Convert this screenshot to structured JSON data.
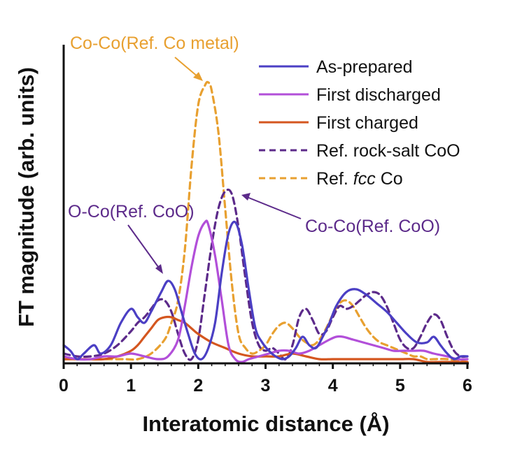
{
  "chart_data": {
    "type": "line",
    "xlabel": "Interatomic distance (Å)",
    "ylabel": "FT magnitude (arb. units)",
    "xlim": [
      0,
      6
    ],
    "ylim": [
      0,
      1
    ],
    "xticks": [
      "0",
      "1",
      "2",
      "3",
      "4",
      "5",
      "6"
    ],
    "legend_position": "top-right",
    "series": [
      {
        "name": "As-prepared",
        "color": "#4B3FC4",
        "dash": "solid",
        "x": [
          0,
          0.1,
          0.2,
          0.3,
          0.45,
          0.55,
          0.7,
          0.85,
          1.0,
          1.1,
          1.2,
          1.3,
          1.45,
          1.55,
          1.65,
          1.75,
          1.85,
          1.95,
          2.05,
          2.15,
          2.25,
          2.35,
          2.45,
          2.55,
          2.65,
          2.75,
          2.85,
          2.95,
          3.05,
          3.15,
          3.25,
          3.35,
          3.45,
          3.55,
          3.65,
          3.75,
          3.85,
          3.95,
          4.05,
          4.2,
          4.35,
          4.5,
          4.65,
          4.8,
          4.95,
          5.1,
          5.25,
          5.4,
          5.5,
          5.6,
          5.7,
          5.8,
          5.9,
          6.0
        ],
        "y": [
          0.06,
          0.04,
          0.01,
          0.03,
          0.06,
          0.03,
          0.06,
          0.14,
          0.19,
          0.16,
          0.14,
          0.18,
          0.25,
          0.29,
          0.26,
          0.18,
          0.1,
          0.03,
          0.01,
          0.05,
          0.14,
          0.32,
          0.46,
          0.5,
          0.42,
          0.26,
          0.12,
          0.07,
          0.04,
          0.02,
          0.01,
          0.02,
          0.05,
          0.09,
          0.06,
          0.05,
          0.09,
          0.14,
          0.2,
          0.25,
          0.26,
          0.24,
          0.21,
          0.18,
          0.14,
          0.1,
          0.07,
          0.07,
          0.09,
          0.06,
          0.03,
          0.01,
          0.02,
          0.02
        ]
      },
      {
        "name": "First discharged",
        "color": "#B24FD9",
        "dash": "solid",
        "x": [
          0,
          0.2,
          0.4,
          0.6,
          0.8,
          1.0,
          1.2,
          1.4,
          1.55,
          1.7,
          1.8,
          1.9,
          2.0,
          2.1,
          2.15,
          2.25,
          2.35,
          2.45,
          2.55,
          2.65,
          2.75,
          2.9,
          3.05,
          3.2,
          3.35,
          3.5,
          3.65,
          3.8,
          3.95,
          4.05,
          4.15,
          4.3,
          4.45,
          4.6,
          4.75,
          4.9,
          5.05,
          5.2,
          5.35,
          5.5,
          5.7,
          5.85,
          6.0
        ],
        "y": [
          0.02,
          0.01,
          0.01,
          0.02,
          0.02,
          0.03,
          0.02,
          0.01,
          0.02,
          0.08,
          0.2,
          0.34,
          0.45,
          0.5,
          0.49,
          0.38,
          0.22,
          0.06,
          0.01,
          0.0,
          0.01,
          0.02,
          0.03,
          0.04,
          0.04,
          0.03,
          0.04,
          0.06,
          0.08,
          0.09,
          0.09,
          0.08,
          0.07,
          0.06,
          0.05,
          0.04,
          0.04,
          0.04,
          0.04,
          0.03,
          0.02,
          0.01,
          0.01
        ]
      },
      {
        "name": "First charged",
        "color": "#D4561F",
        "dash": "solid",
        "x": [
          0,
          0.3,
          0.6,
          0.8,
          1.0,
          1.1,
          1.2,
          1.3,
          1.4,
          1.5,
          1.6,
          1.7,
          1.8,
          1.9,
          2.0,
          2.2,
          2.4,
          2.6,
          2.8,
          3.0,
          3.2,
          3.4,
          3.6,
          3.8,
          4.0,
          4.2,
          4.4,
          4.6,
          4.8,
          5.0,
          5.2,
          5.4,
          5.6,
          5.8,
          6.0
        ],
        "y": [
          0.01,
          0.01,
          0.01,
          0.02,
          0.04,
          0.06,
          0.09,
          0.12,
          0.15,
          0.16,
          0.16,
          0.15,
          0.14,
          0.12,
          0.1,
          0.07,
          0.05,
          0.03,
          0.02,
          0.02,
          0.02,
          0.03,
          0.02,
          0.01,
          0.01,
          0.01,
          0.01,
          0.01,
          0.01,
          0.01,
          0.01,
          0.0,
          0.0,
          0.0,
          0.0
        ]
      },
      {
        "name": "Ref. rock-salt CoO",
        "color": "#5C2A8A",
        "dash": "dashed",
        "x": [
          0,
          0.2,
          0.4,
          0.6,
          0.8,
          1.0,
          1.1,
          1.2,
          1.3,
          1.4,
          1.5,
          1.6,
          1.7,
          1.8,
          1.9,
          2.0,
          2.1,
          2.2,
          2.3,
          2.4,
          2.5,
          2.6,
          2.7,
          2.8,
          2.9,
          3.0,
          3.1,
          3.2,
          3.3,
          3.4,
          3.5,
          3.6,
          3.7,
          3.8,
          3.9,
          4.0,
          4.1,
          4.2,
          4.3,
          4.4,
          4.5,
          4.6,
          4.7,
          4.8,
          4.9,
          5.0,
          5.1,
          5.2,
          5.3,
          5.4,
          5.5,
          5.6,
          5.7,
          5.8,
          5.9,
          6.0
        ],
        "y": [
          0.03,
          0.02,
          0.02,
          0.03,
          0.06,
          0.11,
          0.14,
          0.16,
          0.19,
          0.22,
          0.22,
          0.18,
          0.1,
          0.03,
          0.01,
          0.08,
          0.25,
          0.42,
          0.55,
          0.61,
          0.6,
          0.48,
          0.3,
          0.14,
          0.06,
          0.04,
          0.05,
          0.03,
          0.01,
          0.06,
          0.16,
          0.19,
          0.15,
          0.1,
          0.11,
          0.16,
          0.2,
          0.19,
          0.2,
          0.22,
          0.24,
          0.25,
          0.24,
          0.2,
          0.14,
          0.08,
          0.05,
          0.05,
          0.09,
          0.14,
          0.17,
          0.15,
          0.09,
          0.04,
          0.02,
          0.02
        ]
      },
      {
        "name": "Ref. fcc Co",
        "color": "#E8A030",
        "dash": "dashed",
        "x": [
          0,
          0.3,
          0.6,
          0.9,
          1.1,
          1.3,
          1.5,
          1.6,
          1.7,
          1.8,
          1.9,
          2.0,
          2.1,
          2.15,
          2.2,
          2.3,
          2.4,
          2.5,
          2.6,
          2.7,
          2.8,
          2.9,
          3.0,
          3.1,
          3.2,
          3.3,
          3.4,
          3.5,
          3.6,
          3.7,
          3.8,
          3.9,
          4.0,
          4.1,
          4.2,
          4.3,
          4.4,
          4.5,
          4.6,
          4.7,
          4.8,
          4.9,
          5.0,
          5.1,
          5.2,
          5.3,
          5.4,
          5.5,
          5.7,
          6.0
        ],
        "y": [
          0.01,
          0.01,
          0.01,
          0.01,
          0.01,
          0.03,
          0.08,
          0.14,
          0.22,
          0.4,
          0.7,
          0.92,
          0.99,
          1.0,
          0.97,
          0.82,
          0.55,
          0.28,
          0.1,
          0.05,
          0.03,
          0.04,
          0.06,
          0.1,
          0.13,
          0.14,
          0.12,
          0.09,
          0.07,
          0.06,
          0.08,
          0.12,
          0.17,
          0.21,
          0.22,
          0.2,
          0.16,
          0.12,
          0.09,
          0.07,
          0.06,
          0.05,
          0.04,
          0.03,
          0.02,
          0.02,
          0.01,
          0.01,
          0.01,
          0.0
        ]
      }
    ],
    "annotations": [
      {
        "text": "Co-Co(Ref. Co metal)",
        "color": "#E8A030",
        "points_to": {
          "x": 2.12,
          "y": 1.02
        }
      },
      {
        "text": "O-Co(Ref. CoO)",
        "color": "#5C2A8A",
        "points_to": {
          "x": 1.55,
          "y": 0.31
        }
      },
      {
        "text": "Co-Co(Ref. CoO)",
        "color": "#5C2A8A",
        "points_to": {
          "x": 2.65,
          "y": 0.6
        }
      }
    ]
  },
  "legend": {
    "entries": [
      {
        "label": "As-prepared",
        "series": 0
      },
      {
        "label": "First discharged",
        "series": 1
      },
      {
        "label": "First charged",
        "series": 2
      },
      {
        "label": "Ref. rock-salt CoO",
        "series": 3
      },
      {
        "label_prefix": "Ref. ",
        "label_italic": "fcc",
        "label_suffix": " Co",
        "series": 4
      }
    ]
  }
}
